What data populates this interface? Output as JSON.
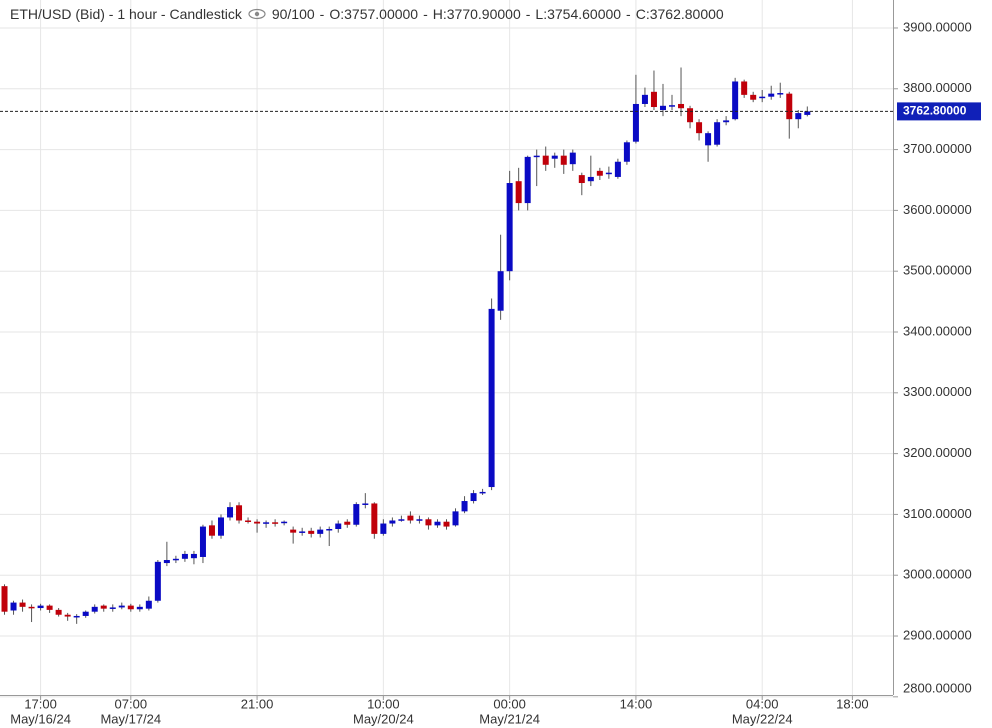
{
  "chart_data": {
    "type": "candlestick",
    "title": "ETH/USD (Bid) - 1 hour - Candlestick",
    "separator": "-",
    "count_label": "90/100",
    "header_stats": [
      "O:3757.00000",
      "H:3770.90000",
      "L:3754.60000",
      "C:3762.80000"
    ],
    "categories": [
      null,
      null,
      null,
      null,
      "17:00",
      null,
      null,
      null,
      null,
      null,
      null,
      null,
      null,
      null,
      "07:00",
      null,
      null,
      null,
      null,
      null,
      null,
      null,
      null,
      null,
      null,
      null,
      null,
      null,
      "21:00",
      null,
      null,
      null,
      null,
      null,
      null,
      null,
      null,
      null,
      null,
      null,
      null,
      null,
      "10:00",
      null,
      null,
      null,
      null,
      null,
      null,
      null,
      null,
      null,
      null,
      null,
      null,
      null,
      "00:00",
      null,
      null,
      null,
      null,
      null,
      null,
      null,
      null,
      null,
      null,
      null,
      null,
      null,
      "14:00",
      null,
      null,
      null,
      null,
      null,
      null,
      null,
      null,
      null,
      null,
      null,
      null,
      null,
      "04:00",
      null,
      null,
      null,
      null,
      null,
      null,
      null,
      null,
      null,
      "18:00",
      null,
      null,
      null,
      null
    ],
    "category_dates": [
      null,
      null,
      null,
      null,
      "May/16/24",
      null,
      null,
      null,
      null,
      null,
      null,
      null,
      null,
      null,
      "May/17/24",
      null,
      null,
      null,
      null,
      null,
      null,
      null,
      null,
      null,
      null,
      null,
      null,
      null,
      null,
      null,
      null,
      null,
      null,
      null,
      null,
      null,
      null,
      null,
      null,
      null,
      null,
      null,
      "May/20/24",
      null,
      null,
      null,
      null,
      null,
      null,
      null,
      null,
      null,
      null,
      null,
      null,
      null,
      "May/21/24",
      null,
      null,
      null,
      null,
      null,
      null,
      null,
      null,
      null,
      null,
      null,
      null,
      null,
      null,
      null,
      null,
      null,
      null,
      null,
      null,
      null,
      null,
      null,
      null,
      null,
      null,
      null,
      "May/22/24",
      null,
      null,
      null,
      null,
      null,
      null,
      null,
      null,
      null,
      null,
      null,
      null,
      null,
      null
    ],
    "open": [
      2982,
      2942,
      2955,
      2948,
      2946,
      2950,
      2943,
      2935,
      2932,
      2933,
      2940,
      2950,
      2945,
      2947,
      2950,
      2944,
      2945,
      2958,
      3020,
      3025,
      3027,
      3028,
      3030,
      3082,
      3065,
      3095,
      3115,
      3090,
      3088,
      3085,
      3087,
      3086,
      3075,
      3070,
      3073,
      3068,
      3075,
      3076,
      3088,
      3083,
      3117,
      3118,
      3068,
      3085,
      3090,
      3098,
      3090,
      3092,
      3082,
      3088,
      3082,
      3105,
      3122,
      3135,
      3145,
      3435,
      3500,
      3648,
      3612,
      3688,
      3690,
      3685,
      3690,
      3676,
      3658,
      3648,
      3665,
      3660,
      3655,
      3680,
      3713,
      3775,
      3795,
      3765,
      3772,
      3775,
      3768,
      3745,
      3707,
      3708,
      3745,
      3750,
      3812,
      3790,
      3785,
      3787,
      3793,
      3792,
      3750,
      3757,
      null,
      null,
      null,
      null,
      null,
      null,
      null,
      null,
      null
    ],
    "high": [
      2985,
      2958,
      2960,
      2952,
      2953,
      2952,
      2946,
      2938,
      2936,
      2942,
      2952,
      2952,
      2952,
      2955,
      2953,
      2952,
      2965,
      3025,
      3055,
      3032,
      3040,
      3040,
      3083,
      3090,
      3100,
      3120,
      3120,
      3095,
      3092,
      3090,
      3092,
      3090,
      3080,
      3078,
      3078,
      3080,
      3080,
      3090,
      3092,
      3120,
      3135,
      3120,
      3092,
      3095,
      3098,
      3105,
      3098,
      3095,
      3092,
      3092,
      3110,
      3130,
      3140,
      3142,
      3455,
      3560,
      3665,
      3670,
      3690,
      3700,
      3705,
      3695,
      3700,
      3700,
      3662,
      3690,
      3670,
      3672,
      3685,
      3715,
      3823,
      3802,
      3830,
      3808,
      3790,
      3835,
      3772,
      3750,
      3730,
      3750,
      3755,
      3818,
      3815,
      3795,
      3798,
      3805,
      3810,
      3795,
      3765,
      3770.9,
      null,
      null,
      null,
      null,
      null,
      null,
      null,
      null,
      null
    ],
    "low": [
      2935,
      2935,
      2940,
      2923,
      2942,
      2938,
      2932,
      2925,
      2920,
      2930,
      2937,
      2940,
      2940,
      2944,
      2940,
      2940,
      2942,
      2955,
      3015,
      3020,
      3022,
      3018,
      3020,
      3060,
      3060,
      3090,
      3085,
      3085,
      3070,
      3078,
      3080,
      3082,
      3052,
      3065,
      3062,
      3062,
      3048,
      3070,
      3078,
      3080,
      3110,
      3060,
      3065,
      3080,
      3088,
      3085,
      3085,
      3075,
      3078,
      3075,
      3080,
      3102,
      3118,
      3132,
      3140,
      3420,
      3485,
      3600,
      3600,
      3640,
      3665,
      3670,
      3660,
      3665,
      3625,
      3640,
      3650,
      3652,
      3652,
      3675,
      3710,
      3770,
      3765,
      3755,
      3765,
      3755,
      3735,
      3715,
      3680,
      3705,
      3740,
      3748,
      3785,
      3778,
      3778,
      3782,
      3785,
      3718,
      3735,
      3754.6,
      null,
      null,
      null,
      null,
      null,
      null,
      null,
      null,
      null
    ],
    "close": [
      2940,
      2955,
      2948,
      2946,
      2950,
      2943,
      2935,
      2932,
      2933,
      2940,
      2948,
      2945,
      2947,
      2950,
      2944,
      2948,
      2958,
      3022,
      3025,
      3027,
      3035,
      3035,
      3080,
      3065,
      3095,
      3112,
      3090,
      3088,
      3085,
      3087,
      3086,
      3088,
      3070,
      3072,
      3068,
      3075,
      3076,
      3085,
      3083,
      3117,
      3118,
      3068,
      3085,
      3090,
      3092,
      3090,
      3092,
      3082,
      3088,
      3080,
      3105,
      3122,
      3135,
      3137,
      3438,
      3500,
      3645,
      3612,
      3688,
      3690,
      3675,
      3690,
      3675,
      3695,
      3645,
      3655,
      3657,
      3662,
      3680,
      3712,
      3775,
      3790,
      3770,
      3772,
      3773,
      3768,
      3745,
      3727,
      3727,
      3745,
      3748,
      3812,
      3790,
      3782,
      3787,
      3792,
      3793,
      3750,
      3760,
      3762.8,
      null,
      null,
      null,
      null,
      null,
      null,
      null,
      null,
      null
    ],
    "up_color": "#0a0ac4",
    "down_color": "#c0000a",
    "last_price": {
      "value": 3762.8,
      "label": "3762.80000"
    },
    "last_price_color": "#1020b8",
    "ylim": [
      2803,
      3946
    ],
    "yticks": [
      {
        "value": 2800,
        "label": "2800.00000"
      },
      {
        "value": 2900,
        "label": "2900.00000"
      },
      {
        "value": 3000,
        "label": "3000.00000"
      },
      {
        "value": 3100,
        "label": "3100.00000"
      },
      {
        "value": 3200,
        "label": "3200.00000"
      },
      {
        "value": 3300,
        "label": "3300.00000"
      },
      {
        "value": 3400,
        "label": "3400.00000"
      },
      {
        "value": 3500,
        "label": "3500.00000"
      },
      {
        "value": 3600,
        "label": "3600.00000"
      },
      {
        "value": 3700,
        "label": "3700.00000"
      },
      {
        "value": 3800,
        "label": "3800.00000"
      },
      {
        "value": 3900,
        "label": "3900.00000"
      }
    ],
    "grid": true
  }
}
